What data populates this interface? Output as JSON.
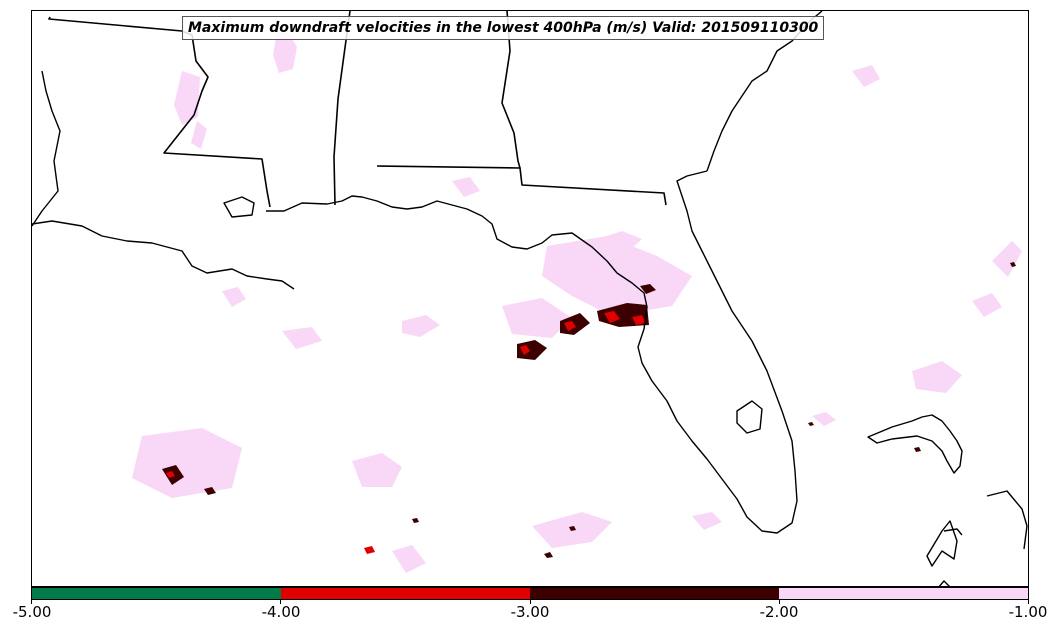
{
  "map": {
    "title": "Maximum downdraft velocities in the lowest 400hPa (m/s) Valid: 201509110300",
    "region": "US Gulf Coast and Florida",
    "background": "#ffffff",
    "coastline_color": "#000000"
  },
  "colorbar": {
    "segments": [
      {
        "from": -5.0,
        "to": -4.0,
        "color": "#037a4a"
      },
      {
        "from": -4.0,
        "to": -3.0,
        "color": "#e00000"
      },
      {
        "from": -3.0,
        "to": -2.0,
        "color": "#3d0000"
      },
      {
        "from": -2.0,
        "to": -1.0,
        "color": "#f9d7f7"
      }
    ],
    "ticks": [
      "-5.00",
      "-4.00",
      "-3.00",
      "-2.00",
      "-1.00"
    ]
  },
  "legend_colors": {
    "light": "#f9d7f7",
    "dark": "#3d0000",
    "red": "#e00000"
  }
}
